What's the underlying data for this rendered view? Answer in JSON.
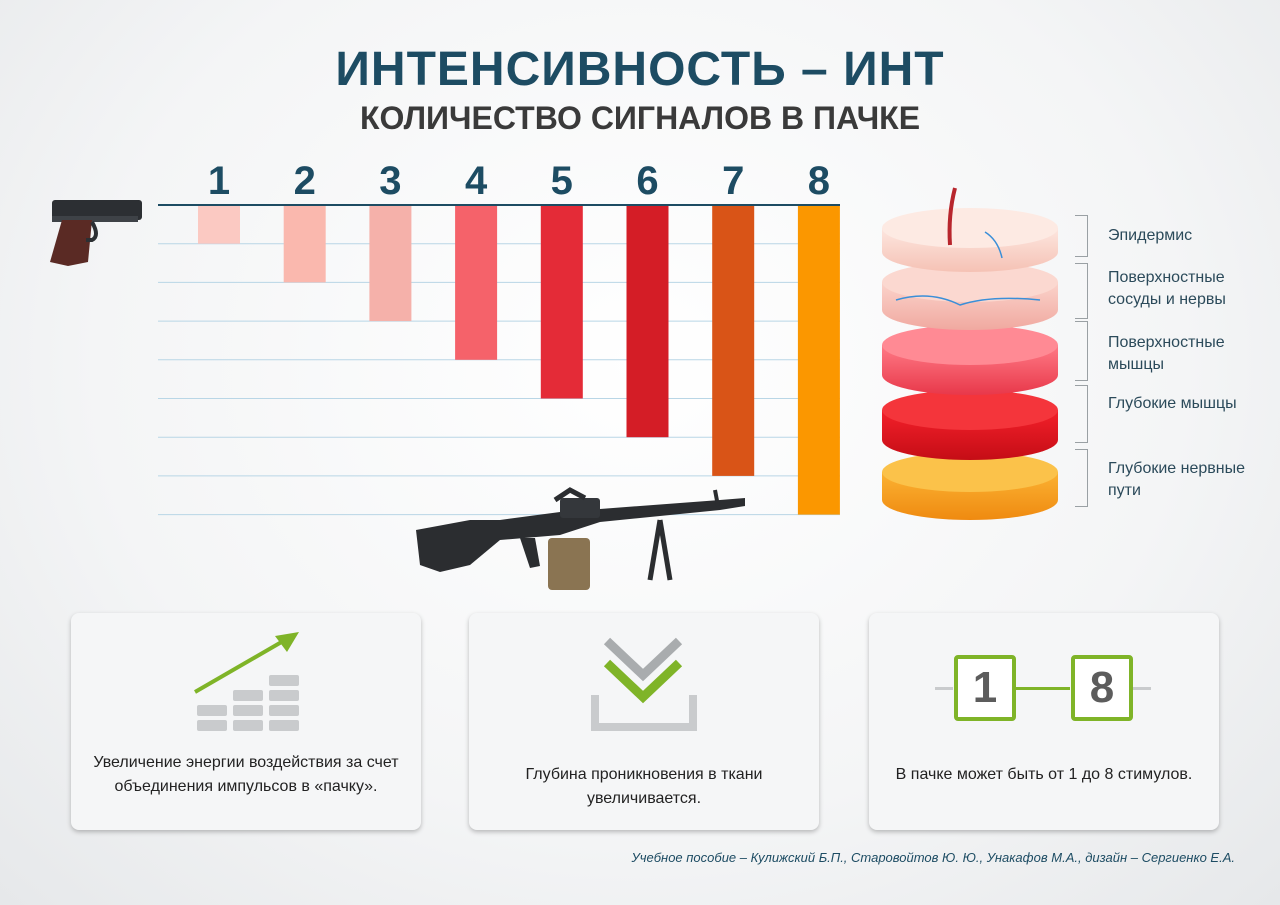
{
  "header": {
    "title": "ИНТЕНСИВНОСТЬ – ИНТ",
    "subtitle": "КОЛИЧЕСТВО СИГНАЛОВ В ПАЧКЕ"
  },
  "chart_data": {
    "type": "bar",
    "orientation": "downward",
    "categories": [
      "1",
      "2",
      "3",
      "4",
      "5",
      "6",
      "7",
      "8"
    ],
    "values": [
      1,
      2,
      3,
      4,
      5,
      6,
      7,
      8
    ],
    "colors": [
      "#fbc9c2",
      "#fab8ae",
      "#f5b1aa",
      "#f5626a",
      "#e42b37",
      "#d41d26",
      "#d95417",
      "#fb9700"
    ],
    "ylim": [
      0,
      8
    ],
    "grid": true
  },
  "layers": [
    {
      "label": "Эпидермис"
    },
    {
      "label": "Поверхностные сосуды и нервы"
    },
    {
      "label": "Поверхностные мышцы"
    },
    {
      "label": "Глубокие мышцы"
    },
    {
      "label": "Глубокие нервные пути"
    }
  ],
  "cards": [
    {
      "icon": "growth-chart-icon",
      "text": "Увеличение энергии воздействия за счет объединения импульсов в «пачку»."
    },
    {
      "icon": "depth-download-icon",
      "text": "Глубина проникновения в ткани увеличивается."
    },
    {
      "icon": "range-1-8-icon",
      "text": "В пачке может быть от 1 до 8 стимулов.",
      "range_from": "1",
      "range_to": "8"
    }
  ],
  "colors": {
    "accent_green": "#7fb428",
    "title_blue": "#1d4c63"
  },
  "footer": "Учебное пособие – Кулижский Б.П., Старовойтов Ю. Ю., Унакафов М.А.,  дизайн – Сергиенко Е.А."
}
